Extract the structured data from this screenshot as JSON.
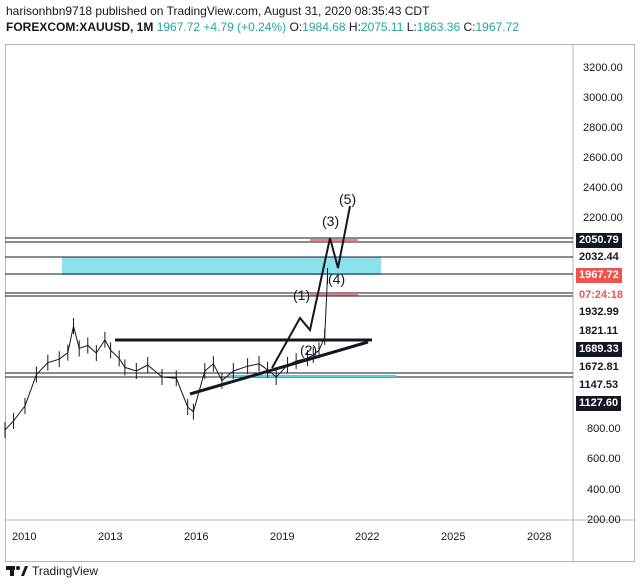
{
  "header": {
    "line1": "harisonhbn9718 published on TradingView.com, August 31, 2020 08:35:43 CDT",
    "symbol": "FOREXCOM:XAUUSD, 1M",
    "last": "1967.72",
    "change": "+4.79 (+0.24%)",
    "o_label": "O:",
    "o_value": "1984.68",
    "h_label": "H:",
    "h_value": "2075.11",
    "l_label": "L:",
    "l_value": "1863.36",
    "c_label": "C:",
    "c_value": "1967.72"
  },
  "colors": {
    "up": "#26a69a",
    "zone": "#4dd0e1",
    "red": "#ef5350",
    "dark": "#131722"
  },
  "chart_data": {
    "type": "line",
    "title": "FOREXCOM:XAUUSD, 1M",
    "xlabel": "",
    "ylabel": "",
    "x_ticks": [
      "2010",
      "2013",
      "2016",
      "2019",
      "2022",
      "2025",
      "2028"
    ],
    "x_range": [
      2009.3,
      2029.2
    ],
    "y_ticks": [
      "3200.00",
      "3000.00",
      "2800.00",
      "2600.00",
      "2400.00",
      "2200.00",
      "800.00",
      "600.00",
      "400.00",
      "200.00"
    ],
    "price_tags": [
      {
        "label": "2050.79",
        "style": "dark"
      },
      {
        "label": "2032.44",
        "style": "plain"
      },
      {
        "label": "1967.72",
        "style": "red"
      },
      {
        "label": "07:24:18",
        "style": "redtext"
      },
      {
        "label": "1932.99",
        "style": "plain"
      },
      {
        "label": "1821.11",
        "style": "plain"
      },
      {
        "label": "1689.33",
        "style": "dark"
      },
      {
        "label": "1672.81",
        "style": "plain"
      },
      {
        "label": "1147.53",
        "style": "plain"
      },
      {
        "label": "1127.60",
        "style": "dark"
      }
    ],
    "wave_labels": [
      "(1)",
      "(2)",
      "(3)",
      "(4)",
      "(5)"
    ],
    "series": [
      {
        "name": "XAUUSD monthly",
        "x": [
          2009.3,
          2009.6,
          2010.0,
          2010.4,
          2010.8,
          2011.2,
          2011.5,
          2011.7,
          2011.9,
          2012.2,
          2012.5,
          2012.8,
          2013.0,
          2013.3,
          2013.5,
          2013.9,
          2014.3,
          2014.8,
          2015.3,
          2015.7,
          2015.9,
          2016.3,
          2016.6,
          2016.9,
          2017.3,
          2017.8,
          2018.2,
          2018.5,
          2018.8,
          2019.2,
          2019.5,
          2019.9,
          2020.1,
          2020.3,
          2020.5,
          2020.6
        ],
        "y": [
          900,
          980,
          1110,
          1220,
          1360,
          1450,
          1620,
          1850,
          1700,
          1720,
          1610,
          1760,
          1680,
          1470,
          1280,
          1250,
          1300,
          1200,
          1190,
          1100,
          1060,
          1250,
          1330,
          1170,
          1250,
          1290,
          1330,
          1260,
          1200,
          1300,
          1400,
          1480,
          1560,
          1680,
          1780,
          1967
        ]
      }
    ]
  },
  "footer": {
    "brand": "TradingView"
  }
}
